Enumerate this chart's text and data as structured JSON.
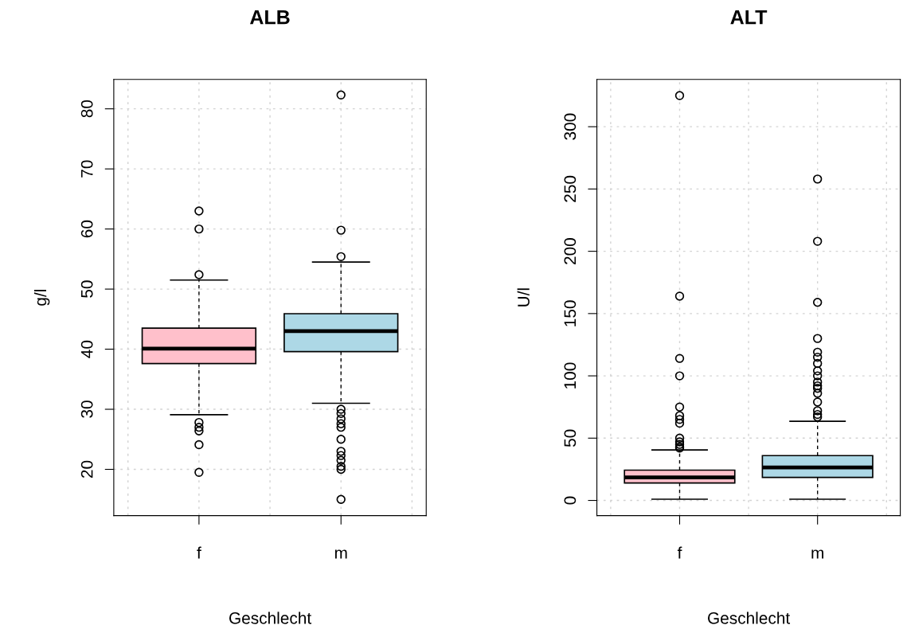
{
  "chart_data": [
    {
      "type": "box",
      "title": "ALB",
      "xlabel": "Geschlecht",
      "ylabel": "g/l",
      "categories": [
        "f",
        "m"
      ],
      "ylim": [
        12.3,
        84.9
      ],
      "yticks": [
        20,
        30,
        40,
        50,
        60,
        70,
        80
      ],
      "grid": true,
      "series": [
        {
          "boxes": [
            {
              "low": 29.1,
              "q1": 37.6,
              "median": 40.1,
              "q3": 43.5,
              "high": 51.5,
              "outliers": [
                63,
                60,
                52.4,
                27.8,
                27.0,
                26.4,
                24.1,
                19.5
              ]
            },
            {
              "low": 31.0,
              "q1": 39.6,
              "median": 43.0,
              "q3": 45.9,
              "high": 54.5,
              "outliers": [
                82.3,
                59.8,
                55.4,
                30,
                29.3,
                28.4,
                27.6,
                27,
                25,
                23,
                22.3,
                21.5,
                20.5,
                20.0,
                15
              ]
            }
          ],
          "colors": [
            "#ffc0cb",
            "#add8e6"
          ]
        }
      ]
    },
    {
      "type": "box",
      "title": "ALT",
      "xlabel": "Geschlecht",
      "ylabel": "U/l",
      "categories": [
        "f",
        "m"
      ],
      "ylim": [
        -12.2,
        338
      ],
      "yticks": [
        0,
        50,
        100,
        150,
        200,
        250,
        300
      ],
      "grid": true,
      "series": [
        {
          "boxes": [
            {
              "low": 1,
              "q1": 14,
              "median": 18.5,
              "q3": 24.3,
              "high": 40.5,
              "outliers": [
                325,
                164,
                114,
                100,
                75,
                68,
                65,
                62,
                50,
                47,
                45,
                43,
                42
              ]
            },
            {
              "low": 1,
              "q1": 18.5,
              "median": 26.5,
              "q3": 36,
              "high": 63.5,
              "outliers": [
                258,
                208,
                159,
                130,
                119,
                115,
                110,
                104,
                100,
                95,
                92,
                90,
                86,
                79,
                72,
                69,
                67
              ]
            }
          ],
          "colors": [
            "#ffc0cb",
            "#add8e6"
          ]
        }
      ]
    }
  ]
}
